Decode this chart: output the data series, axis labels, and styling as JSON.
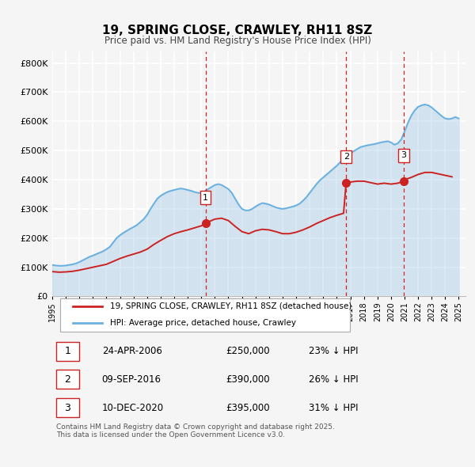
{
  "title": "19, SPRING CLOSE, CRAWLEY, RH11 8SZ",
  "subtitle": "Price paid vs. HM Land Registry's House Price Index (HPI)",
  "xlim": [
    1995.0,
    2025.5
  ],
  "ylim": [
    0,
    840000
  ],
  "yticks": [
    0,
    100000,
    200000,
    300000,
    400000,
    500000,
    600000,
    700000,
    800000
  ],
  "ytick_labels": [
    "£0",
    "£100K",
    "£200K",
    "£300K",
    "£400K",
    "£500K",
    "£600K",
    "£700K",
    "£800K"
  ],
  "hpi_color": "#6ab0e0",
  "price_color": "#cc2222",
  "marker_color": "#cc2222",
  "vline_color": "#cc2222",
  "bg_color": "#f5f5f5",
  "grid_color": "#ffffff",
  "legend_label_price": "19, SPRING CLOSE, CRAWLEY, RH11 8SZ (detached house)",
  "legend_label_hpi": "HPI: Average price, detached house, Crawley",
  "transactions": [
    {
      "num": 1,
      "date_dec": 2006.31,
      "price": 250000,
      "label": "24-APR-2006",
      "price_str": "£250,000",
      "pct": "23% ↓ HPI"
    },
    {
      "num": 2,
      "date_dec": 2016.69,
      "price": 390000,
      "label": "09-SEP-2016",
      "price_str": "£390,000",
      "pct": "26% ↓ HPI"
    },
    {
      "num": 3,
      "date_dec": 2020.94,
      "price": 395000,
      "label": "10-DEC-2020",
      "price_str": "£395,000",
      "pct": "31% ↓ HPI"
    }
  ],
  "footnote": "Contains HM Land Registry data © Crown copyright and database right 2025.\nThis data is licensed under the Open Government Licence v3.0.",
  "hpi_data": {
    "x": [
      1995.0,
      1995.25,
      1995.5,
      1995.75,
      1996.0,
      1996.25,
      1996.5,
      1996.75,
      1997.0,
      1997.25,
      1997.5,
      1997.75,
      1998.0,
      1998.25,
      1998.5,
      1998.75,
      1999.0,
      1999.25,
      1999.5,
      1999.75,
      2000.0,
      2000.25,
      2000.5,
      2000.75,
      2001.0,
      2001.25,
      2001.5,
      2001.75,
      2002.0,
      2002.25,
      2002.5,
      2002.75,
      2003.0,
      2003.25,
      2003.5,
      2003.75,
      2004.0,
      2004.25,
      2004.5,
      2004.75,
      2005.0,
      2005.25,
      2005.5,
      2005.75,
      2006.0,
      2006.25,
      2006.5,
      2006.75,
      2007.0,
      2007.25,
      2007.5,
      2007.75,
      2008.0,
      2008.25,
      2008.5,
      2008.75,
      2009.0,
      2009.25,
      2009.5,
      2009.75,
      2010.0,
      2010.25,
      2010.5,
      2010.75,
      2011.0,
      2011.25,
      2011.5,
      2011.75,
      2012.0,
      2012.25,
      2012.5,
      2012.75,
      2013.0,
      2013.25,
      2013.5,
      2013.75,
      2014.0,
      2014.25,
      2014.5,
      2014.75,
      2015.0,
      2015.25,
      2015.5,
      2015.75,
      2016.0,
      2016.25,
      2016.5,
      2016.75,
      2017.0,
      2017.25,
      2017.5,
      2017.75,
      2018.0,
      2018.25,
      2018.5,
      2018.75,
      2019.0,
      2019.25,
      2019.5,
      2019.75,
      2020.0,
      2020.25,
      2020.5,
      2020.75,
      2021.0,
      2021.25,
      2021.5,
      2021.75,
      2022.0,
      2022.25,
      2022.5,
      2022.75,
      2023.0,
      2023.25,
      2023.5,
      2023.75,
      2024.0,
      2024.25,
      2024.5,
      2024.75,
      2025.0
    ],
    "y": [
      108000,
      106000,
      105000,
      105000,
      106000,
      108000,
      110000,
      113000,
      118000,
      124000,
      130000,
      136000,
      140000,
      145000,
      150000,
      155000,
      162000,
      170000,
      185000,
      200000,
      210000,
      218000,
      225000,
      232000,
      238000,
      245000,
      255000,
      265000,
      280000,
      300000,
      318000,
      335000,
      345000,
      352000,
      358000,
      362000,
      365000,
      368000,
      370000,
      368000,
      365000,
      362000,
      358000,
      355000,
      355000,
      360000,
      368000,
      375000,
      382000,
      385000,
      382000,
      375000,
      368000,
      355000,
      335000,
      315000,
      300000,
      295000,
      295000,
      300000,
      308000,
      315000,
      320000,
      318000,
      315000,
      310000,
      305000,
      302000,
      300000,
      302000,
      305000,
      308000,
      312000,
      318000,
      328000,
      340000,
      355000,
      370000,
      385000,
      398000,
      408000,
      418000,
      428000,
      438000,
      448000,
      460000,
      472000,
      480000,
      490000,
      498000,
      505000,
      512000,
      515000,
      518000,
      520000,
      522000,
      525000,
      528000,
      530000,
      532000,
      528000,
      520000,
      525000,
      538000,
      565000,
      595000,
      620000,
      638000,
      650000,
      655000,
      658000,
      655000,
      648000,
      638000,
      628000,
      618000,
      610000,
      608000,
      610000,
      615000,
      610000
    ]
  },
  "price_data": {
    "x": [
      1995.0,
      1995.5,
      1996.0,
      1996.5,
      1997.0,
      1997.5,
      1998.0,
      1998.5,
      1999.0,
      1999.5,
      2000.0,
      2000.5,
      2001.0,
      2001.5,
      2002.0,
      2002.5,
      2003.0,
      2003.5,
      2004.0,
      2004.5,
      2005.0,
      2005.5,
      2006.0,
      2006.31,
      2006.5,
      2007.0,
      2007.5,
      2008.0,
      2008.5,
      2009.0,
      2009.5,
      2010.0,
      2010.5,
      2011.0,
      2011.5,
      2012.0,
      2012.5,
      2013.0,
      2013.5,
      2014.0,
      2014.5,
      2015.0,
      2015.5,
      2016.0,
      2016.5,
      2016.69,
      2017.0,
      2017.5,
      2018.0,
      2018.5,
      2019.0,
      2019.5,
      2020.0,
      2020.5,
      2020.94,
      2021.0,
      2021.5,
      2022.0,
      2022.5,
      2023.0,
      2023.5,
      2024.0,
      2024.5
    ],
    "y": [
      85000,
      83000,
      84000,
      86000,
      90000,
      95000,
      100000,
      105000,
      110000,
      120000,
      130000,
      138000,
      145000,
      152000,
      162000,
      178000,
      192000,
      205000,
      215000,
      222000,
      228000,
      235000,
      242000,
      250000,
      255000,
      265000,
      268000,
      260000,
      240000,
      222000,
      215000,
      225000,
      230000,
      228000,
      222000,
      215000,
      215000,
      220000,
      228000,
      238000,
      250000,
      260000,
      270000,
      278000,
      285000,
      390000,
      392000,
      395000,
      395000,
      390000,
      385000,
      388000,
      385000,
      388000,
      395000,
      400000,
      408000,
      418000,
      425000,
      425000,
      420000,
      415000,
      410000
    ]
  }
}
